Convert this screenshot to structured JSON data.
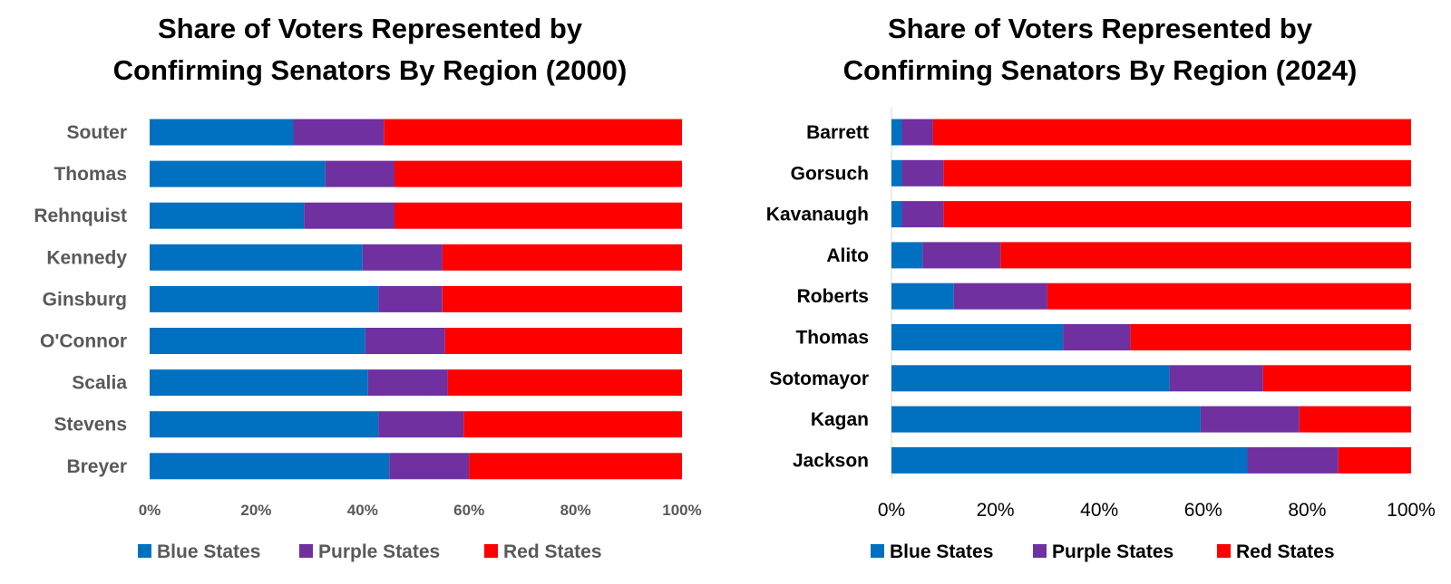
{
  "chart_data": [
    {
      "type": "bar",
      "orientation": "horizontal",
      "stacked": "percent",
      "title_lines": [
        "Share of Voters Represented by",
        "Confirming Senators By Region (2000)"
      ],
      "categories": [
        "Souter",
        "Thomas",
        "Rehnquist",
        "Kennedy",
        "Ginsburg",
        "O'Connor",
        "Scalia",
        "Stevens",
        "Breyer"
      ],
      "series": [
        {
          "name": "Blue States",
          "color": "#0070C0",
          "values": [
            27,
            33,
            29,
            40,
            43,
            40.5,
            41,
            43,
            45
          ]
        },
        {
          "name": "Purple States",
          "color": "#7030A0",
          "values": [
            17,
            13,
            17,
            15,
            12,
            15,
            15,
            16,
            15
          ]
        },
        {
          "name": "Red States",
          "color": "#FF0000",
          "values": [
            56,
            54,
            54,
            45,
            45,
            44.5,
            44,
            41,
            40
          ]
        }
      ],
      "xlim": [
        0,
        100
      ],
      "xticks": [
        "0%",
        "20%",
        "40%",
        "60%",
        "80%",
        "100%"
      ],
      "legend": "bottom",
      "grid": false
    },
    {
      "type": "bar",
      "orientation": "horizontal",
      "stacked": "percent",
      "title_lines": [
        "Share of Voters Represented by",
        "Confirming Senators By Region (2024)"
      ],
      "categories": [
        "Barrett",
        "Gorsuch",
        "Kavanaugh",
        "Alito",
        "Roberts",
        "Thomas",
        "Sotomayor",
        "Kagan",
        "Jackson"
      ],
      "series": [
        {
          "name": "Blue States",
          "color": "#0070C0",
          "values": [
            2,
            2,
            2,
            6,
            12,
            33,
            53.5,
            59.5,
            68.5
          ]
        },
        {
          "name": "Purple States",
          "color": "#7030A0",
          "values": [
            6,
            8,
            8,
            15,
            18,
            13,
            18,
            19,
            17.5
          ]
        },
        {
          "name": "Red States",
          "color": "#FF0000",
          "values": [
            92,
            90,
            90,
            79,
            70,
            54,
            28.5,
            21.5,
            14
          ]
        }
      ],
      "xlim": [
        0,
        100
      ],
      "xticks": [
        "0%",
        "20%",
        "40%",
        "60%",
        "80%",
        "100%"
      ],
      "legend": "bottom",
      "grid": false
    }
  ]
}
